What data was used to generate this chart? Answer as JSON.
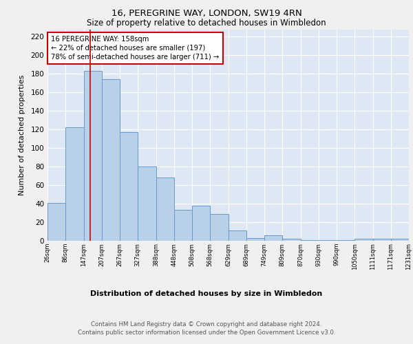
{
  "title1": "16, PEREGRINE WAY, LONDON, SW19 4RN",
  "title2": "Size of property relative to detached houses in Wimbledon",
  "xlabel": "Distribution of detached houses by size in Wimbledon",
  "ylabel": "Number of detached properties",
  "bin_labels": [
    "26sqm",
    "86sqm",
    "147sqm",
    "207sqm",
    "267sqm",
    "327sqm",
    "388sqm",
    "448sqm",
    "508sqm",
    "568sqm",
    "629sqm",
    "689sqm",
    "749sqm",
    "809sqm",
    "870sqm",
    "930sqm",
    "990sqm",
    "1050sqm",
    "1111sqm",
    "1171sqm",
    "1231sqm"
  ],
  "bar_values": [
    41,
    122,
    183,
    174,
    117,
    80,
    68,
    33,
    38,
    29,
    11,
    3,
    6,
    2,
    1,
    1,
    1,
    2,
    2,
    2
  ],
  "bar_color": "#b8d0e8",
  "bar_edgecolor": "#6699cc",
  "bar_linewidth": 0.7,
  "background_color": "#dde8f4",
  "grid_color": "#ffffff",
  "red_line_x": 2.35,
  "annotation_text": "16 PEREGRINE WAY: 158sqm\n← 22% of detached houses are smaller (197)\n78% of semi-detached houses are larger (711) →",
  "annotation_box_color": "#ffffff",
  "annotation_box_edgecolor": "#cc0000",
  "ylim": [
    0,
    228
  ],
  "fig_facecolor": "#f0f0f0",
  "footer1": "Contains HM Land Registry data © Crown copyright and database right 2024.",
  "footer2": "Contains public sector information licensed under the Open Government Licence v3.0."
}
